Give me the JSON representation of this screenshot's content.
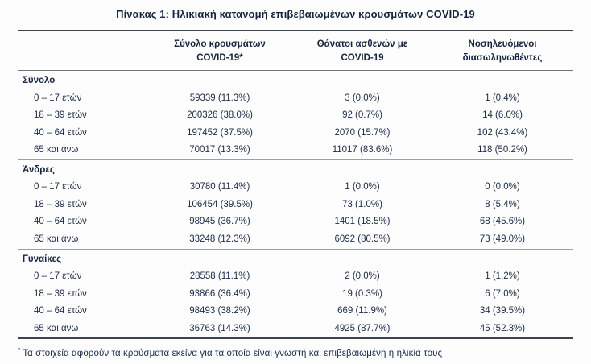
{
  "title": "Πίνακας 1: Ηλικιακή κατανομή επιβεβαιωμένων κρουσμάτων COVID-19",
  "table": {
    "columns": [
      {
        "line1": "Σύνολο κρουσμάτων",
        "line2": "COVID-19*"
      },
      {
        "line1": "Θάνατοι ασθενών με",
        "line2": "COVID-19"
      },
      {
        "line1": "Νοσηλευόμενοι",
        "line2": "διασωληνωθέντες"
      }
    ],
    "sections": [
      {
        "label": "Σύνολο",
        "rows": [
          {
            "age": "0 – 17 ετών",
            "cases": "59339 (11.3%)",
            "deaths": "3 (0.0%)",
            "intubated": "1 (0.4%)"
          },
          {
            "age": "18 – 39 ετών",
            "cases": "200326 (38.0%)",
            "deaths": "92 (0.7%)",
            "intubated": "14 (6.0%)"
          },
          {
            "age": "40 – 64 ετών",
            "cases": "197452 (37.5%)",
            "deaths": "2070 (15.7%)",
            "intubated": "102 (43.4%)"
          },
          {
            "age": "65 και άνω",
            "cases": "70017 (13.3%)",
            "deaths": "11017 (83.6%)",
            "intubated": "118 (50.2%)"
          }
        ]
      },
      {
        "label": "Άνδρες",
        "rows": [
          {
            "age": "0 – 17 ετών",
            "cases": "30780 (11.4%)",
            "deaths": "1 (0.0%)",
            "intubated": "0 (0.0%)"
          },
          {
            "age": "18 – 39 ετών",
            "cases": "106454 (39.5%)",
            "deaths": "73 (1.0%)",
            "intubated": "8 (5.4%)"
          },
          {
            "age": "40 – 64 ετών",
            "cases": "98945 (36.7%)",
            "deaths": "1401 (18.5%)",
            "intubated": "68 (45.6%)"
          },
          {
            "age": "65 και άνω",
            "cases": "33248 (12.3%)",
            "deaths": "6092 (80.5%)",
            "intubated": "73 (49.0%)"
          }
        ]
      },
      {
        "label": "Γυναίκες",
        "rows": [
          {
            "age": "0 – 17 ετών",
            "cases": "28558 (11.1%)",
            "deaths": "2 (0.0%)",
            "intubated": "1 (1.2%)"
          },
          {
            "age": "18 – 39 ετών",
            "cases": "93866 (36.4%)",
            "deaths": "19 (0.3%)",
            "intubated": "6 (7.0%)"
          },
          {
            "age": "40 – 64 ετών",
            "cases": "98493 (38.2%)",
            "deaths": "669 (11.9%)",
            "intubated": "34 (39.5%)"
          },
          {
            "age": "65 και άνω",
            "cases": "36763 (14.3%)",
            "deaths": "4925 (87.7%)",
            "intubated": "45 (52.3%)"
          }
        ]
      }
    ]
  },
  "footnote": {
    "marker": "*",
    "text": "Τα στοιχεία αφορούν τα κρούσματα εκείνα για τα οποία είναι γνωστή και επιβεβαιωμένη η ηλικία τους"
  }
}
